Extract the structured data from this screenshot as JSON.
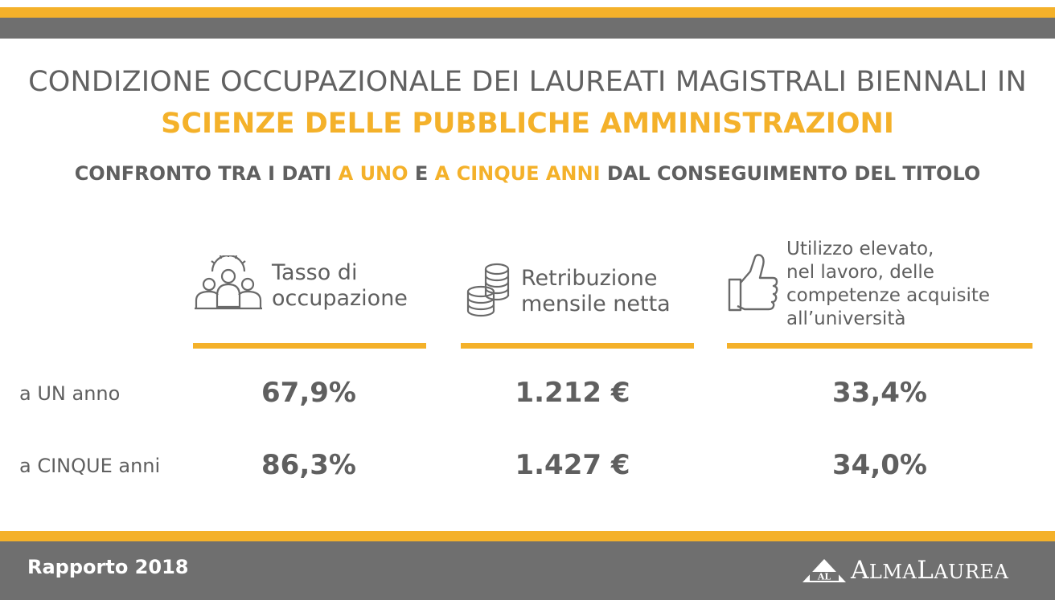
{
  "header": {
    "title_line1": "CONDIZIONE OCCUPAZIONALE DEI LAUREATI MAGISTRALI BIENNALI IN",
    "title_line2": "SCIENZE DELLE PUBBLICHE AMMINISTRAZIONI",
    "subtitle": {
      "part1": "CONFRONTO TRA I DATI ",
      "hl1": "A UNO",
      "part2": " E ",
      "hl2": "A CINQUE ANNI",
      "part3": " DAL CONSEGUIMENTO DEL TITOLO"
    }
  },
  "columns": [
    {
      "icon": "people-gear-icon",
      "line1": "Tasso di",
      "line2": "occupazione"
    },
    {
      "icon": "coins-stack-icon",
      "line1": "Retribuzione",
      "line2": "mensile netta"
    },
    {
      "icon": "thumbs-up-icon",
      "line1": "Utilizzo elevato,",
      "line2": "nel lavoro, delle",
      "line3": "competenze acquisite",
      "line4": "all’università"
    }
  ],
  "rows": [
    {
      "label": "a UN anno",
      "values": [
        "67,9%",
        "1.212 €",
        "33,4%"
      ]
    },
    {
      "label": "a CINQUE anni",
      "values": [
        "86,3%",
        "1.427 €",
        "34,0%"
      ]
    }
  ],
  "footer": {
    "report": "Rapporto 2018",
    "logo_badge": "AL",
    "logo_a": "A",
    "logo_alma": "LMA",
    "logo_l": "L",
    "logo_aurea": "AUREA"
  },
  "colors": {
    "accent": "#f4b12a",
    "band": "#6f6f6f",
    "text": "#5f5f5f"
  }
}
